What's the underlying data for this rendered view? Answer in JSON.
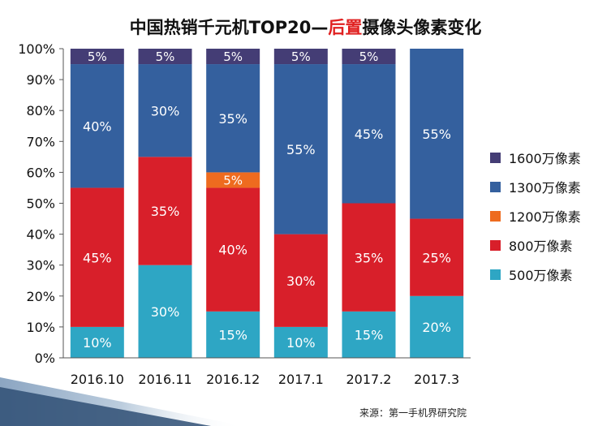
{
  "title": {
    "part1": "中国热销千元机TOP20—",
    "highlight": "后置",
    "part2": "摄像头像素变化"
  },
  "source": "来源：第一手机界研究院",
  "chart_data": {
    "type": "bar",
    "stacked": true,
    "categories": [
      "2016.10",
      "2016.11",
      "2016.12",
      "2017.1",
      "2017.2",
      "2017.3"
    ],
    "series": [
      {
        "name": "500万像素",
        "color": "#2ea6c4",
        "values": [
          10,
          30,
          15,
          10,
          15,
          20
        ]
      },
      {
        "name": "800万像素",
        "color": "#d81f2a",
        "values": [
          45,
          35,
          40,
          30,
          35,
          25
        ]
      },
      {
        "name": "1200万像素",
        "color": "#ee6b1f",
        "values": [
          0,
          0,
          5,
          0,
          0,
          0
        ]
      },
      {
        "name": "1300万像素",
        "color": "#34609e",
        "values": [
          40,
          30,
          35,
          55,
          45,
          55
        ]
      },
      {
        "name": "1600万像素",
        "color": "#443d75",
        "values": [
          5,
          5,
          5,
          5,
          5,
          0
        ]
      }
    ],
    "ylim": [
      0,
      100
    ],
    "yticks": [
      "0%",
      "10%",
      "20%",
      "30%",
      "40%",
      "50%",
      "60%",
      "70%",
      "80%",
      "90%",
      "100%"
    ],
    "value_suffix": "%",
    "legend": "right",
    "grid": false
  }
}
